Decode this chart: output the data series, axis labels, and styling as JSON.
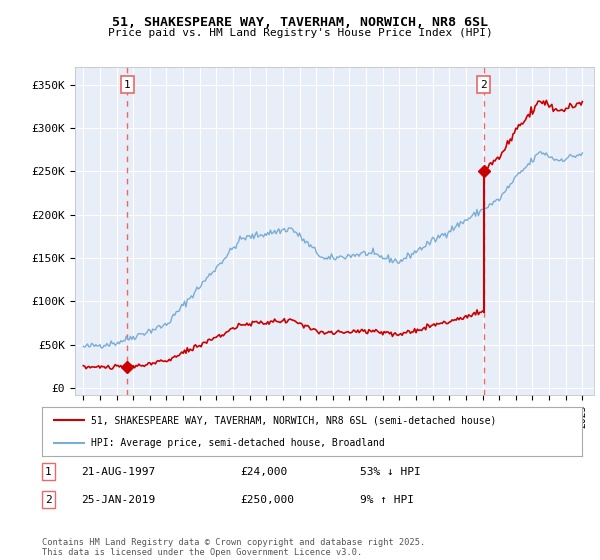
{
  "title": "51, SHAKESPEARE WAY, TAVERHAM, NORWICH, NR8 6SL",
  "subtitle": "Price paid vs. HM Land Registry's House Price Index (HPI)",
  "legend_line1": "51, SHAKESPEARE WAY, TAVERHAM, NORWICH, NR8 6SL (semi-detached house)",
  "legend_line2": "HPI: Average price, semi-detached house, Broadland",
  "sale1_date": "21-AUG-1997",
  "sale1_price": 24000,
  "sale1_pct": "53% ↓ HPI",
  "sale2_date": "25-JAN-2019",
  "sale2_price": 250000,
  "sale2_pct": "9% ↑ HPI",
  "sale1_x": 1997.64,
  "sale2_x": 2019.07,
  "yticks": [
    0,
    50000,
    100000,
    150000,
    200000,
    250000,
    300000,
    350000
  ],
  "background_color": "#e8eef8",
  "grid_color": "#ffffff",
  "red_line_color": "#cc0000",
  "blue_line_color": "#7aadd4",
  "dashed_line_color": "#ee6666",
  "footer": "Contains HM Land Registry data © Crown copyright and database right 2025.\nThis data is licensed under the Open Government Licence v3.0.",
  "hpi_seed": 42,
  "red_seed": 10
}
